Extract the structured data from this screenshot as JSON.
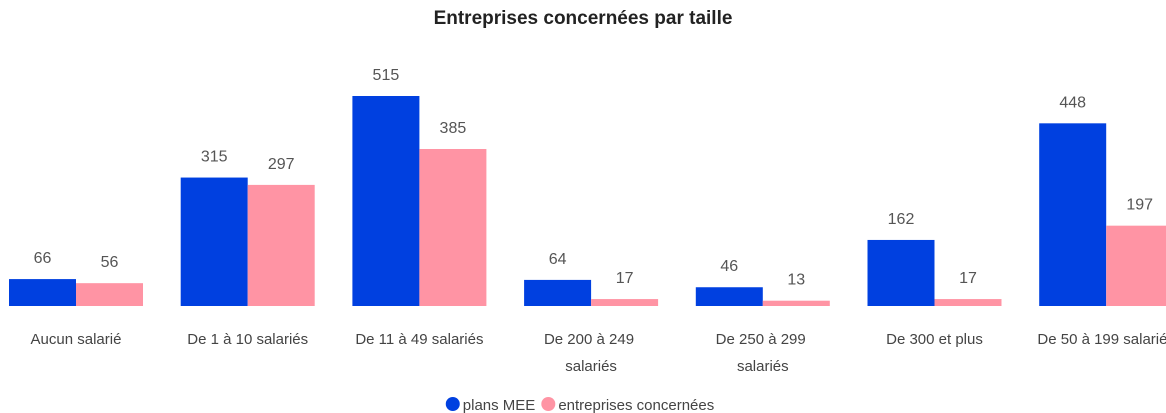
{
  "chart_data": {
    "type": "bar",
    "title": "Entreprises concernées par taille",
    "categories": [
      "Aucun salarié",
      "De 1 à 10 salariés",
      "De 11 à 49 salariés",
      "De 200 à 249 salariés",
      "De 250 à 299 salariés",
      "De 300 et plus",
      "De 50 à 199 salariés"
    ],
    "series": [
      {
        "name": "plans MEE",
        "color": "#0040e0",
        "values": [
          66,
          315,
          515,
          64,
          46,
          162,
          448
        ]
      },
      {
        "name": "entreprises concernées",
        "color": "#ff94a4",
        "values": [
          56,
          297,
          385,
          17,
          13,
          17,
          197
        ]
      }
    ],
    "legend": "bottom"
  }
}
